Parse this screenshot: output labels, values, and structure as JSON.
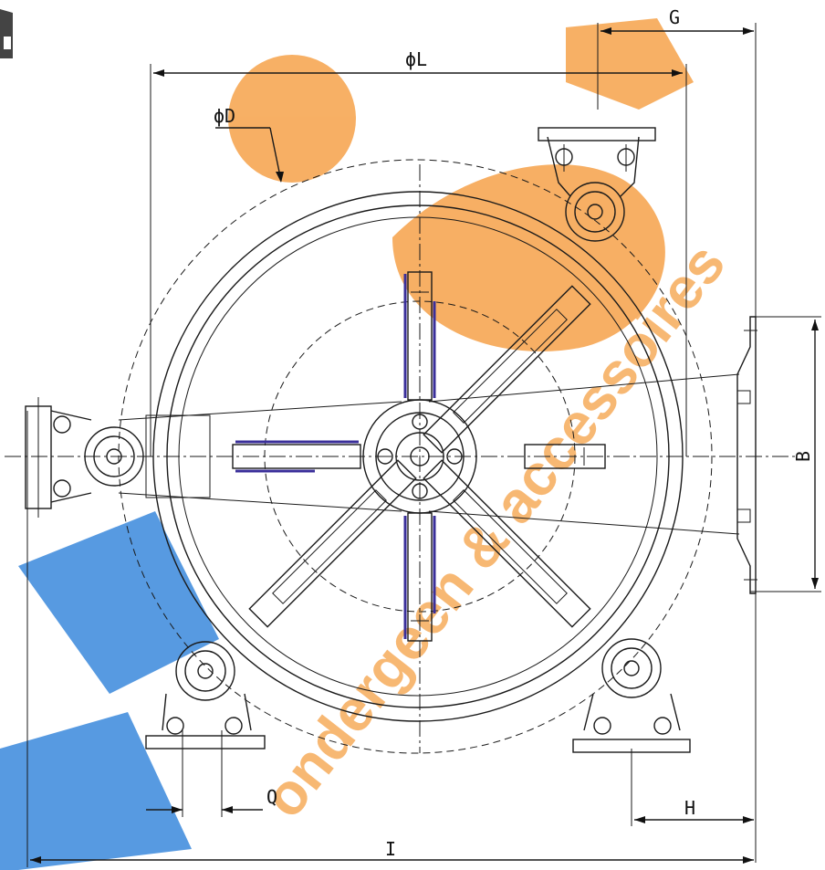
{
  "labels": {
    "phi_L": "ϕL",
    "phi_D": "ϕD",
    "G": "G",
    "B": "B",
    "Q": "Q",
    "H": "H",
    "I": "I"
  },
  "colors": {
    "line": "#1a1a1a",
    "accent_blue": "#3a2f9a",
    "watermark_orange": "#f39a3a",
    "watermark_blue": "#2f7fd6"
  },
  "watermark": {
    "text": "ondergeen & accessoires"
  }
}
